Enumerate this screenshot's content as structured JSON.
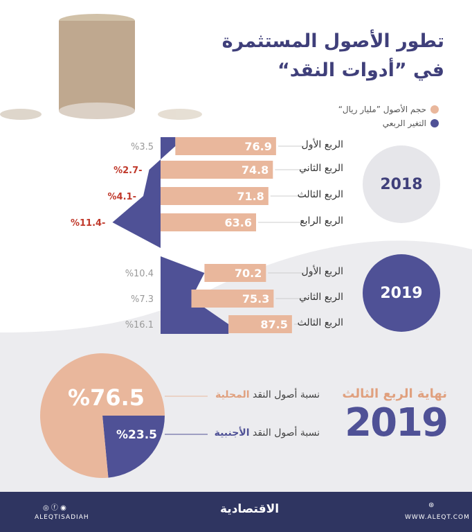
{
  "title": {
    "line1": "تطور الأصول المستثمرة",
    "line2": "في ”أدوات النقد“"
  },
  "legend": [
    {
      "label": "حجم الأصول ”مليار ريال“",
      "color": "#e9b79c"
    },
    {
      "label": "التغير الربعي",
      "color": "#4f5196"
    }
  ],
  "years": [
    {
      "label": "2018",
      "color": "#e6e6ea"
    },
    {
      "label": "2019",
      "color": "#4f5196"
    }
  ],
  "chart_data": {
    "type": "bar",
    "series": [
      {
        "name": "حجم الأصول ”مليار ريال“",
        "values": [
          76.9,
          74.8,
          71.8,
          63.6,
          70.2,
          75.3,
          87.5
        ]
      },
      {
        "name": "التغير الربعي",
        "values": [
          3.5,
          -2.7,
          -4.1,
          -11.4,
          10.4,
          7.3,
          16.1
        ]
      }
    ],
    "categories": [
      "الربع الأول",
      "الربع الثاني",
      "الربع الثالث",
      "الربع الرابع",
      "الربع الأول",
      "الربع الثاني",
      "الربع الثالث"
    ],
    "groups": [
      "2018",
      "2018",
      "2018",
      "2018",
      "2019",
      "2019",
      "2019"
    ],
    "change_labels": [
      "%3.5",
      "%2.7-",
      "%4.1-",
      "%11.4-",
      "%10.4",
      "%7.3",
      "%16.1"
    ]
  },
  "pie": {
    "heading": "نهاية الربع الثالث",
    "year": "2019",
    "slices": [
      {
        "label_prefix": "نسبة أصول النقد ",
        "label_bold": "المحلية",
        "value": 76.5,
        "text": "%76.5",
        "color": "#e9b79c"
      },
      {
        "label_prefix": "نسبة أصول النقد ",
        "label_bold": "الأجنبية",
        "value": 23.5,
        "text": "%23.5",
        "color": "#4f5196"
      }
    ]
  },
  "footer": {
    "handle": "ALEQTISADIAH",
    "logo": "الاقتصادية",
    "website": "WWW.ALEQT.COM"
  }
}
